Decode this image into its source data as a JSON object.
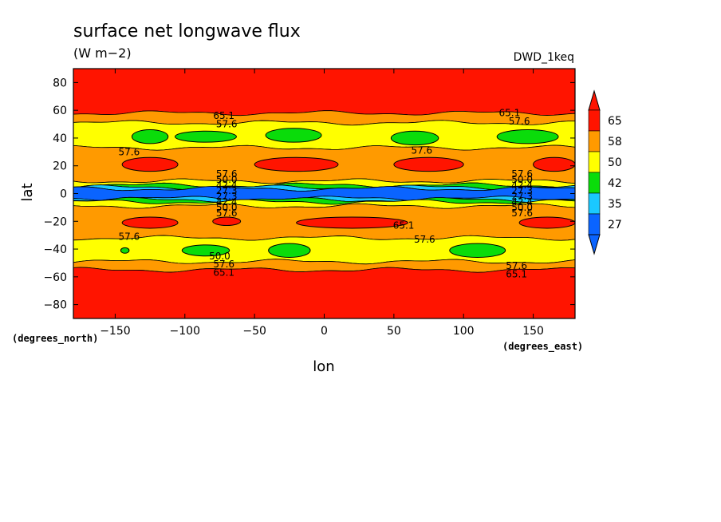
{
  "chart_data": {
    "type": "heatmap",
    "title": "surface net longwave flux",
    "units": "(W m−2)",
    "dataset": "DWD_1keq",
    "xlabel": "lon",
    "ylabel": "lat",
    "x_units": "(degrees_east)",
    "y_units": "(degrees_north)",
    "xlim": [
      -180,
      180
    ],
    "ylim": [
      -90,
      90
    ],
    "x_ticks": [
      -150,
      -100,
      -50,
      0,
      50,
      100,
      150
    ],
    "x_tick_labels": [
      "−150",
      "−100",
      "−50",
      "0",
      "50",
      "100",
      "150"
    ],
    "y_ticks": [
      80,
      60,
      40,
      20,
      0,
      -20,
      -40,
      -60,
      -80
    ],
    "y_tick_labels": [
      "80",
      "60",
      "40",
      "20",
      "0",
      "−20",
      "−40",
      "−60",
      "−80"
    ],
    "colorbar": {
      "levels": [
        27,
        35,
        42,
        50,
        58,
        65
      ],
      "labels": [
        "27",
        "35",
        "42",
        "50",
        "58",
        "65"
      ],
      "colors": [
        "#0a64ff",
        "#1ac8ff",
        "#0adc0a",
        "#ffff00",
        "#ff9a00",
        "#ff1400"
      ],
      "extend": "both",
      "low_color": "#0a64ff",
      "high_color": "#ff1400"
    },
    "bands": [
      {
        "from": 90,
        "to": 58,
        "color": "#ff1400"
      },
      {
        "from": 58,
        "to": 51,
        "color": "#ff9a00"
      },
      {
        "from": 51,
        "to": 33,
        "color": "#ffff00"
      },
      {
        "from": 33,
        "to": 9,
        "color": "#ff9a00"
      },
      {
        "from": 9,
        "to": 6,
        "color": "#ffff00"
      },
      {
        "from": 6,
        "to": 4.5,
        "color": "#0adc0a"
      },
      {
        "from": 4.5,
        "to": 3.5,
        "color": "#1ac8ff"
      },
      {
        "from": 3.5,
        "to": -3.5,
        "color": "#0a64ff"
      },
      {
        "from": -3.5,
        "to": -4.5,
        "color": "#1ac8ff"
      },
      {
        "from": -4.5,
        "to": -6,
        "color": "#0adc0a"
      },
      {
        "from": -6,
        "to": -9,
        "color": "#ffff00"
      },
      {
        "from": -9,
        "to": -32,
        "color": "#ff9a00"
      },
      {
        "from": -32,
        "to": -49,
        "color": "#ffff00"
      },
      {
        "from": -49,
        "to": -55,
        "color": "#ff9a00"
      },
      {
        "from": -55,
        "to": -90,
        "color": "#ff1400"
      }
    ],
    "blobs": [
      {
        "lon": -125,
        "lat": 41,
        "dlon": 13,
        "dlat": 5,
        "color": "#0adc0a"
      },
      {
        "lon": -85,
        "lat": 41,
        "dlon": 22,
        "dlat": 4,
        "color": "#0adc0a"
      },
      {
        "lon": -22,
        "lat": 42,
        "dlon": 20,
        "dlat": 5,
        "color": "#0adc0a"
      },
      {
        "lon": 65,
        "lat": 40,
        "dlon": 17,
        "dlat": 5,
        "color": "#0adc0a"
      },
      {
        "lon": 146,
        "lat": 41,
        "dlon": 22,
        "dlat": 5,
        "color": "#0adc0a"
      },
      {
        "lon": -125,
        "lat": 21,
        "dlon": 20,
        "dlat": 5,
        "color": "#ff1400"
      },
      {
        "lon": -20,
        "lat": 21,
        "dlon": 30,
        "dlat": 5,
        "color": "#ff1400"
      },
      {
        "lon": 75,
        "lat": 21,
        "dlon": 25,
        "dlat": 5,
        "color": "#ff1400"
      },
      {
        "lon": 165,
        "lat": 21,
        "dlon": 15,
        "dlat": 5,
        "color": "#ff1400"
      },
      {
        "lon": -125,
        "lat": -21,
        "dlon": 20,
        "dlat": 4,
        "color": "#ff1400"
      },
      {
        "lon": -70,
        "lat": -20,
        "dlon": 10,
        "dlat": 3,
        "color": "#ff1400"
      },
      {
        "lon": 20,
        "lat": -21,
        "dlon": 40,
        "dlat": 4,
        "color": "#ff1400"
      },
      {
        "lon": 160,
        "lat": -21,
        "dlon": 20,
        "dlat": 4,
        "color": "#ff1400"
      },
      {
        "lon": -85,
        "lat": -41,
        "dlon": 17,
        "dlat": 4,
        "color": "#0adc0a"
      },
      {
        "lon": -25,
        "lat": -41,
        "dlon": 15,
        "dlat": 5,
        "color": "#0adc0a"
      },
      {
        "lon": 110,
        "lat": -41,
        "dlon": 20,
        "dlat": 5,
        "color": "#0adc0a"
      },
      {
        "lon": -143,
        "lat": -41,
        "dlon": 3,
        "dlat": 2,
        "color": "#0adc0a"
      }
    ],
    "contour_labels": [
      {
        "text": "65.1",
        "lon": -72,
        "lat": 56
      },
      {
        "text": "57.6",
        "lon": -70,
        "lat": 50
      },
      {
        "text": "65.1",
        "lon": 133,
        "lat": 58
      },
      {
        "text": "57.6",
        "lon": 140,
        "lat": 52
      },
      {
        "text": "57.6",
        "lon": -140,
        "lat": 30
      },
      {
        "text": "57.6",
        "lon": 70,
        "lat": 31
      },
      {
        "text": "57.6",
        "lon": -70,
        "lat": 14
      },
      {
        "text": "50.0",
        "lon": -70,
        "lat": 10
      },
      {
        "text": "42.4",
        "lon": -70,
        "lat": 6
      },
      {
        "text": "27.3",
        "lon": -70,
        "lat": 2
      },
      {
        "text": "27.3",
        "lon": -70,
        "lat": -2
      },
      {
        "text": "42.4",
        "lon": -70,
        "lat": -6
      },
      {
        "text": "50.0",
        "lon": -70,
        "lat": -10
      },
      {
        "text": "57.6",
        "lon": -70,
        "lat": -14
      },
      {
        "text": "57.6",
        "lon": 142,
        "lat": 14
      },
      {
        "text": "50.0",
        "lon": 142,
        "lat": 10
      },
      {
        "text": "42.4",
        "lon": 142,
        "lat": 6
      },
      {
        "text": "27.3",
        "lon": 142,
        "lat": 2
      },
      {
        "text": "27.3",
        "lon": 142,
        "lat": -2
      },
      {
        "text": "42.4",
        "lon": 142,
        "lat": -6
      },
      {
        "text": "50.0",
        "lon": 142,
        "lat": -10
      },
      {
        "text": "57.6",
        "lon": 142,
        "lat": -14
      },
      {
        "text": "65.1",
        "lon": 57,
        "lat": -23
      },
      {
        "text": "57.6",
        "lon": -140,
        "lat": -31
      },
      {
        "text": "57.6",
        "lon": 72,
        "lat": -33
      },
      {
        "text": "50.0",
        "lon": -75,
        "lat": -45
      },
      {
        "text": "57.6",
        "lon": -72,
        "lat": -51
      },
      {
        "text": "65.1",
        "lon": -72,
        "lat": -57
      },
      {
        "text": "57.6",
        "lon": 138,
        "lat": -52
      },
      {
        "text": "65.1",
        "lon": 138,
        "lat": -58
      }
    ]
  }
}
